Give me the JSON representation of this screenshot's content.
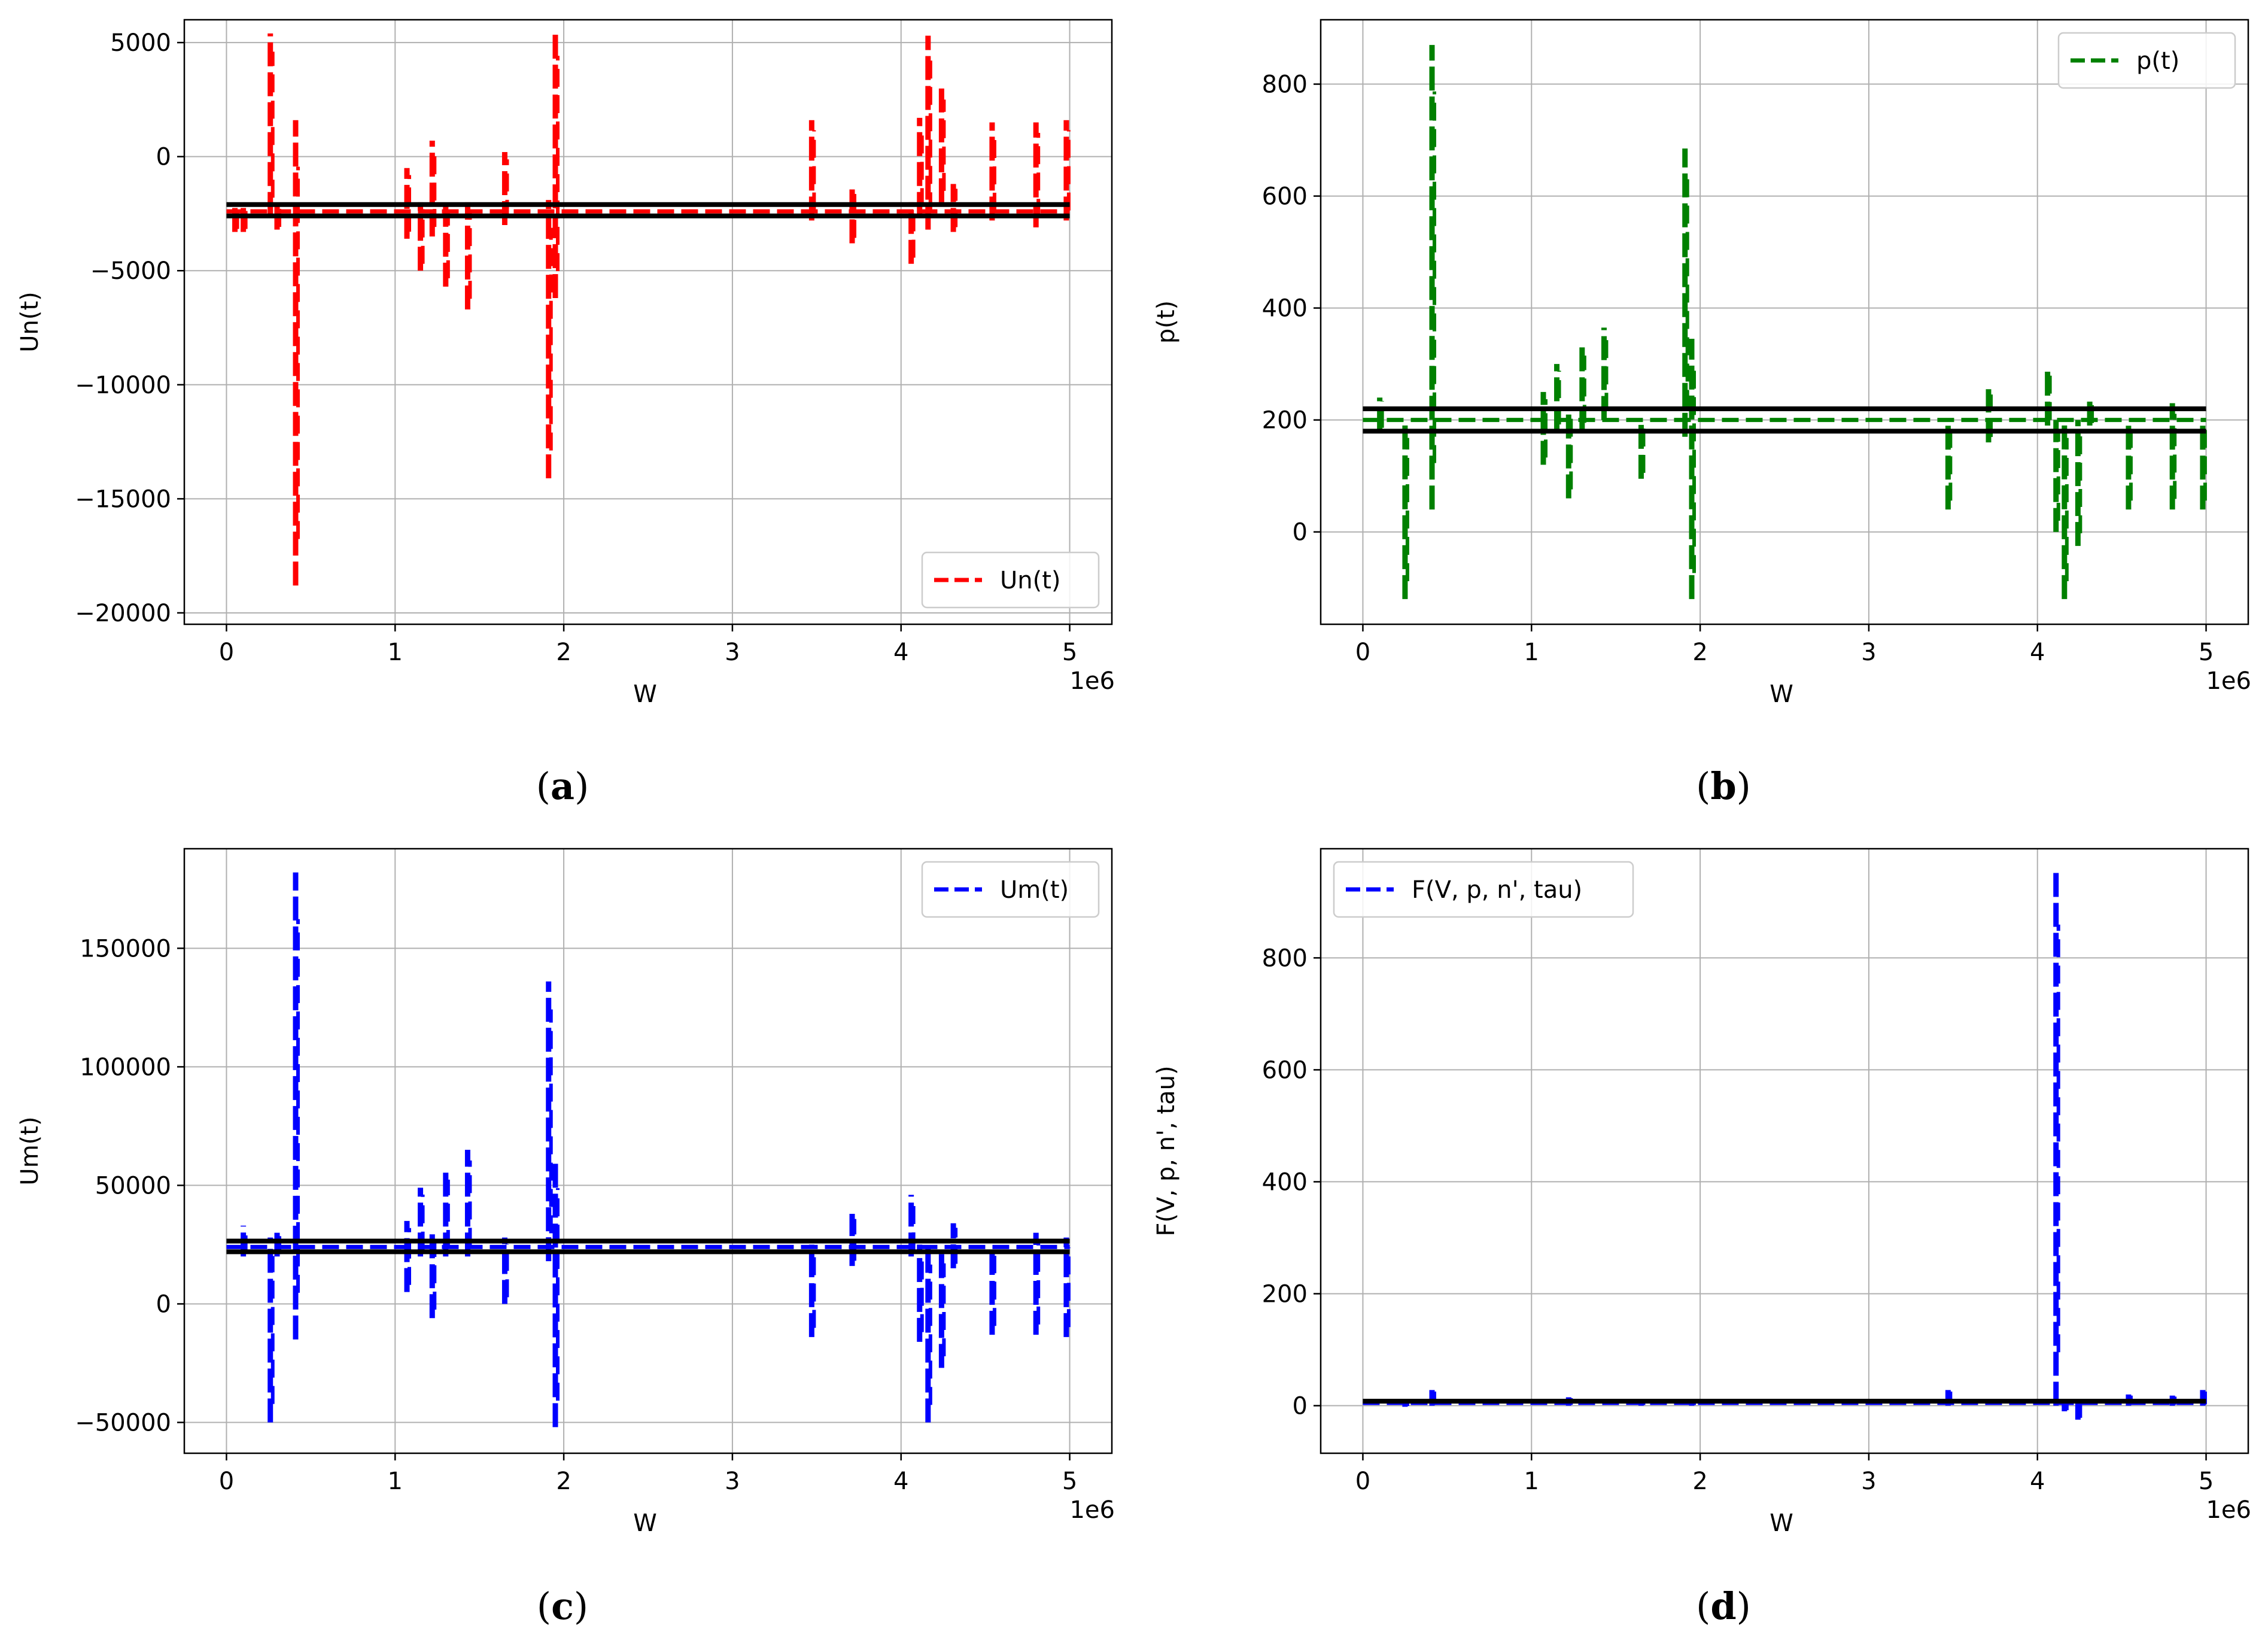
{
  "chart_data": [
    {
      "type": "line",
      "caption": "a",
      "xlabel": "W",
      "ylabel": "Un(t)",
      "x_multiplier_label": "1e6",
      "xlim": [
        -0.25,
        5.25
      ],
      "ylim": [
        -20500,
        6000
      ],
      "xticks": [
        0,
        1,
        2,
        3,
        4,
        5
      ],
      "xtick_labels": [
        "0",
        "1",
        "2",
        "3",
        "4",
        "5"
      ],
      "yticks": [
        5000,
        0,
        -5000,
        -10000,
        -15000,
        -20000
      ],
      "ytick_labels": [
        "5000",
        "0",
        "−5000",
        "−10000",
        "−15000",
        "−20000"
      ],
      "grid": true,
      "legend": {
        "label": "Un(t)",
        "position": "lower-right"
      },
      "series": [
        {
          "name": "Un(t)",
          "color": "#ff0000",
          "style": "dashed",
          "baseline": -2400,
          "spikes": [
            [
              0.05,
              -3300,
              -2000
            ],
            [
              0.1,
              -3300,
              -2000
            ],
            [
              0.26,
              -2600,
              5400
            ],
            [
              0.3,
              -3200,
              -2000
            ],
            [
              0.41,
              -18800,
              1600
            ],
            [
              1.07,
              -3600,
              -500
            ],
            [
              1.15,
              -5000,
              -2000
            ],
            [
              1.22,
              -3500,
              700
            ],
            [
              1.3,
              -5700,
              -2000
            ],
            [
              1.43,
              -6700,
              -2000
            ],
            [
              1.65,
              -3000,
              200
            ],
            [
              1.91,
              -14100,
              -1900
            ],
            [
              1.95,
              -6200,
              5600
            ],
            [
              3.47,
              -2800,
              1600
            ],
            [
              3.71,
              -3800,
              -1400
            ],
            [
              4.06,
              -4700,
              -2000
            ],
            [
              4.11,
              -2600,
              1700
            ],
            [
              4.16,
              -3200,
              5300
            ],
            [
              4.24,
              -2000,
              3000
            ],
            [
              4.31,
              -3300,
              -1200
            ],
            [
              4.54,
              -2800,
              1500
            ],
            [
              4.8,
              -3100,
              1500
            ],
            [
              4.98,
              -2800,
              1600
            ]
          ]
        }
      ],
      "hlines": [
        -2100,
        -2600
      ]
    },
    {
      "type": "line",
      "caption": "b",
      "xlabel": "W",
      "ylabel": "p(t)",
      "x_multiplier_label": "1e6",
      "xlim": [
        -0.25,
        5.25
      ],
      "ylim": [
        -165,
        915
      ],
      "xticks": [
        0,
        1,
        2,
        3,
        4,
        5
      ],
      "xtick_labels": [
        "0",
        "1",
        "2",
        "3",
        "4",
        "5"
      ],
      "yticks": [
        800,
        600,
        400,
        200,
        0
      ],
      "ytick_labels": [
        "800",
        "600",
        "400",
        "200",
        "0"
      ],
      "grid": true,
      "legend": {
        "label": "p(t)",
        "position": "top-right"
      },
      "series": [
        {
          "name": "p(t)",
          "color": "#008000",
          "style": "dashed",
          "baseline": 200,
          "spikes": [
            [
              0.1,
              180,
              240
            ],
            [
              0.25,
              -120,
              200
            ],
            [
              0.41,
              40,
              870
            ],
            [
              1.07,
              120,
              250
            ],
            [
              1.15,
              180,
              300
            ],
            [
              1.22,
              60,
              220
            ],
            [
              1.3,
              180,
              330
            ],
            [
              1.43,
              200,
              365
            ],
            [
              1.65,
              95,
              200
            ],
            [
              1.91,
              170,
              685
            ],
            [
              1.95,
              -120,
              345
            ],
            [
              3.47,
              40,
              200
            ],
            [
              3.71,
              160,
              255
            ],
            [
              4.06,
              190,
              290
            ],
            [
              4.11,
              0,
              200
            ],
            [
              4.16,
              -120,
              200
            ],
            [
              4.24,
              -25,
              200
            ],
            [
              4.31,
              190,
              235
            ],
            [
              4.54,
              40,
              200
            ],
            [
              4.8,
              40,
              230
            ],
            [
              4.98,
              40,
              200
            ]
          ]
        }
      ],
      "hlines": [
        220,
        180
      ]
    },
    {
      "type": "line",
      "caption": "c",
      "xlabel": "W",
      "ylabel": "Um(t)",
      "x_multiplier_label": "1e6",
      "xlim": [
        -0.25,
        5.25
      ],
      "ylim": [
        -63000,
        192000
      ],
      "xticks": [
        0,
        1,
        2,
        3,
        4,
        5
      ],
      "xtick_labels": [
        "0",
        "1",
        "2",
        "3",
        "4",
        "5"
      ],
      "yticks": [
        150000,
        100000,
        50000,
        0,
        -50000
      ],
      "ytick_labels": [
        "150000",
        "100000",
        "50000",
        "0",
        "−50000"
      ],
      "grid": true,
      "legend": {
        "label": "Um(t)",
        "position": "top-right"
      },
      "series": [
        {
          "name": "Um(t)",
          "color": "#0000ff",
          "style": "dashed",
          "baseline": 24000,
          "spikes": [
            [
              0.1,
              20000,
              33000
            ],
            [
              0.26,
              -50000,
              28000
            ],
            [
              0.3,
              20000,
              30000
            ],
            [
              0.41,
              -15000,
              182000
            ],
            [
              1.07,
              5000,
              35000
            ],
            [
              1.15,
              20000,
              49000
            ],
            [
              1.22,
              -6000,
              30000
            ],
            [
              1.3,
              20000,
              56000
            ],
            [
              1.43,
              20000,
              65000
            ],
            [
              1.65,
              0,
              28000
            ],
            [
              1.91,
              18000,
              136000
            ],
            [
              1.95,
              -52000,
              60000
            ],
            [
              3.47,
              -14000,
              25000
            ],
            [
              3.71,
              16000,
              38000
            ],
            [
              4.06,
              20000,
              46000
            ],
            [
              4.11,
              -16000,
              25000
            ],
            [
              4.16,
              -50000,
              24000
            ],
            [
              4.24,
              -27000,
              22000
            ],
            [
              4.31,
              15000,
              34000
            ],
            [
              4.54,
              -13000,
              24000
            ],
            [
              4.8,
              -13000,
              30000
            ],
            [
              4.98,
              -14000,
              28000
            ]
          ]
        }
      ],
      "hlines": [
        26500,
        22000
      ]
    },
    {
      "type": "line",
      "caption": "d",
      "xlabel": "W",
      "ylabel": "F(V, p, n', tau)",
      "x_multiplier_label": "1e6",
      "xlim": [
        -0.25,
        5.25
      ],
      "ylim": [
        -85,
        995
      ],
      "xticks": [
        0,
        1,
        2,
        3,
        4,
        5
      ],
      "xtick_labels": [
        "0",
        "1",
        "2",
        "3",
        "4",
        "5"
      ],
      "yticks": [
        800,
        600,
        400,
        200,
        0
      ],
      "ytick_labels": [
        "800",
        "600",
        "400",
        "200",
        "0"
      ],
      "grid": true,
      "legend": {
        "label": "F(V, p, n', tau)",
        "position": "top-left"
      },
      "series": [
        {
          "name": "F(V, p, n', tau)",
          "color": "#0000ff",
          "style": "dashed",
          "baseline": 5,
          "spikes": [
            [
              0.25,
              -2,
              12
            ],
            [
              0.41,
              0,
              28
            ],
            [
              1.22,
              0,
              15
            ],
            [
              1.65,
              0,
              12
            ],
            [
              1.95,
              0,
              12
            ],
            [
              3.47,
              0,
              28
            ],
            [
              4.11,
              0,
              955
            ],
            [
              4.16,
              -10,
              10
            ],
            [
              4.24,
              -25,
              8
            ],
            [
              4.54,
              0,
              20
            ],
            [
              4.8,
              0,
              18
            ],
            [
              4.98,
              0,
              28
            ]
          ]
        }
      ],
      "hlines": [
        8
      ]
    }
  ]
}
